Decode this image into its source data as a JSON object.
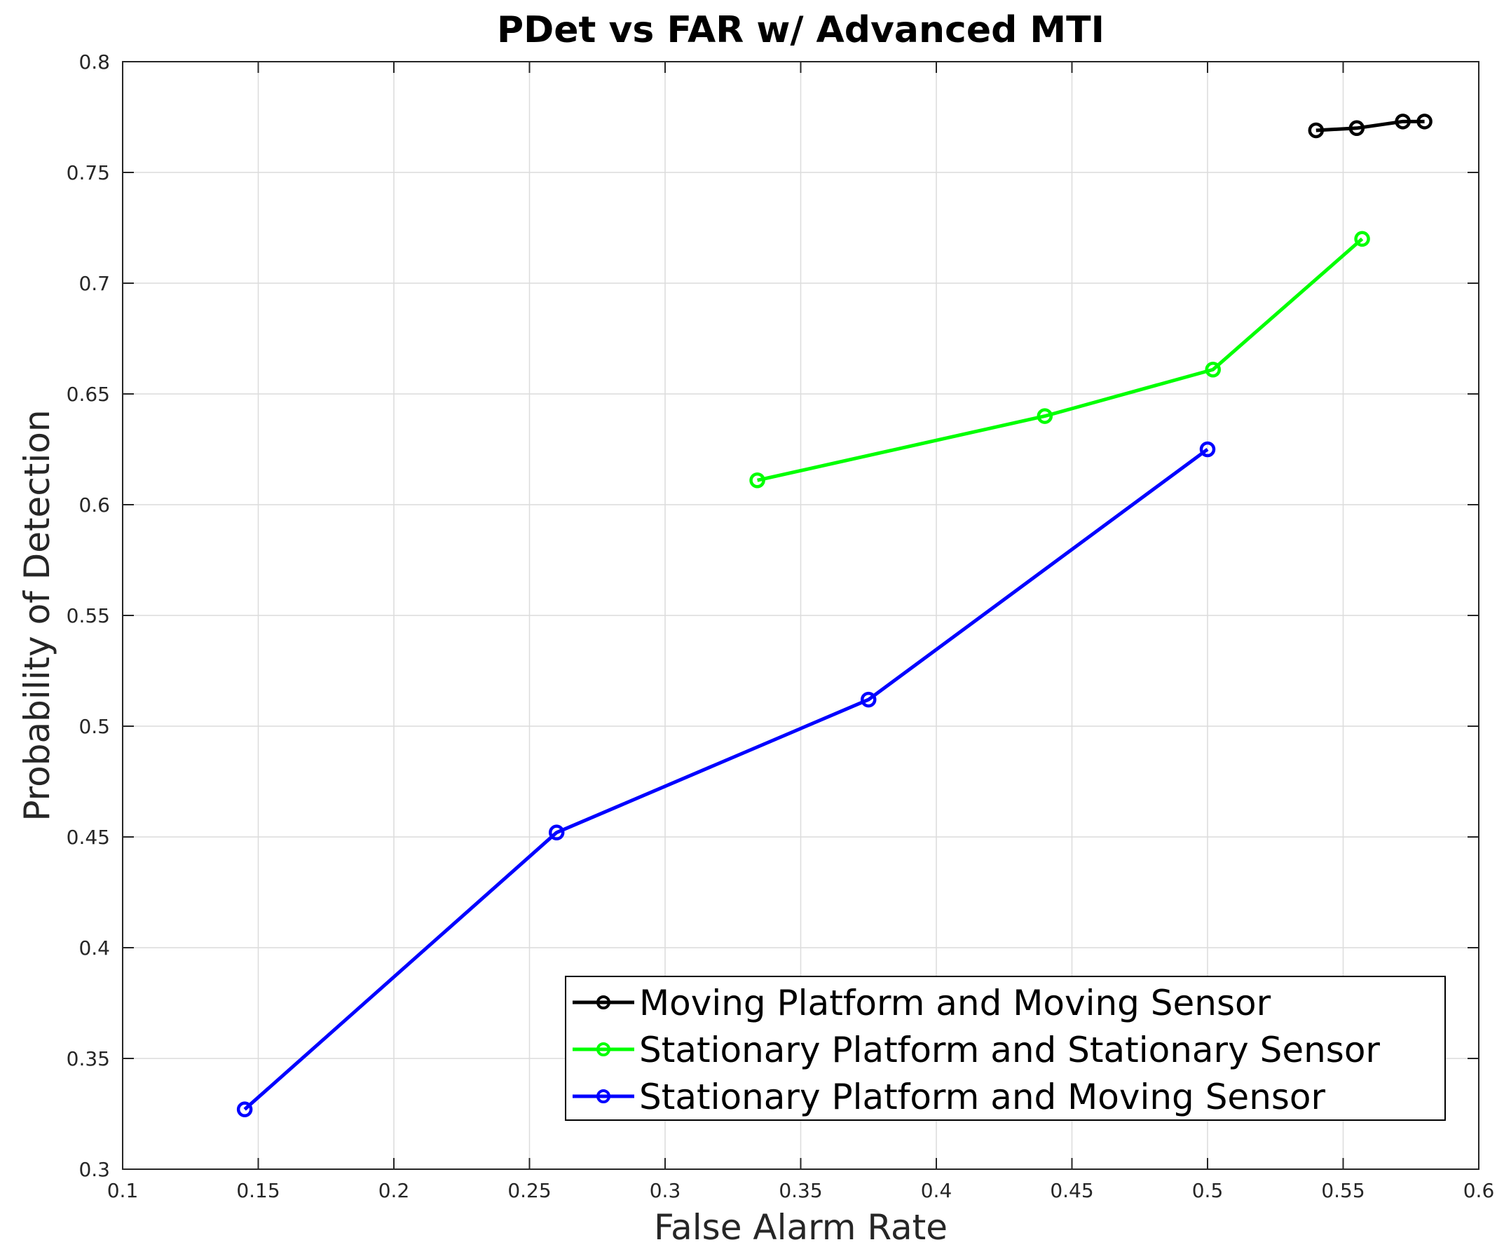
{
  "chart_data": {
    "type": "line",
    "title": "PDet vs FAR w/ Advanced MTI",
    "xlabel": "False Alarm Rate",
    "ylabel": "Probability of Detection",
    "xlim": [
      0.1,
      0.6
    ],
    "ylim": [
      0.3,
      0.8
    ],
    "xticks": [
      0.1,
      0.15,
      0.2,
      0.25,
      0.3,
      0.35,
      0.4,
      0.45,
      0.5,
      0.55,
      0.6
    ],
    "xtick_labels": [
      "0.1",
      "0.15",
      "0.2",
      "0.25",
      "0.3",
      "0.35",
      "0.4",
      "0.45",
      "0.5",
      "0.55",
      "0.6"
    ],
    "yticks": [
      0.3,
      0.35,
      0.4,
      0.45,
      0.5,
      0.55,
      0.6,
      0.65,
      0.7,
      0.75,
      0.8
    ],
    "ytick_labels": [
      "0.3",
      "0.35",
      "0.4",
      "0.45",
      "0.5",
      "0.55",
      "0.6",
      "0.65",
      "0.7",
      "0.75",
      "0.8"
    ],
    "grid": true,
    "legend_position": "bottom-right",
    "series": [
      {
        "name": "Moving Platform and Moving Sensor",
        "color": "#000000",
        "marker": "circle",
        "x": [
          0.54,
          0.555,
          0.572,
          0.58
        ],
        "y": [
          0.769,
          0.77,
          0.773,
          0.773
        ]
      },
      {
        "name": "Stationary Platform and Stationary Sensor",
        "color": "#00ff00",
        "marker": "circle",
        "x": [
          0.334,
          0.44,
          0.502,
          0.557
        ],
        "y": [
          0.611,
          0.64,
          0.661,
          0.72
        ]
      },
      {
        "name": "Stationary Platform and Moving Sensor",
        "color": "#0000ff",
        "marker": "circle",
        "x": [
          0.145,
          0.26,
          0.375,
          0.5
        ],
        "y": [
          0.327,
          0.452,
          0.512,
          0.625
        ]
      }
    ]
  }
}
